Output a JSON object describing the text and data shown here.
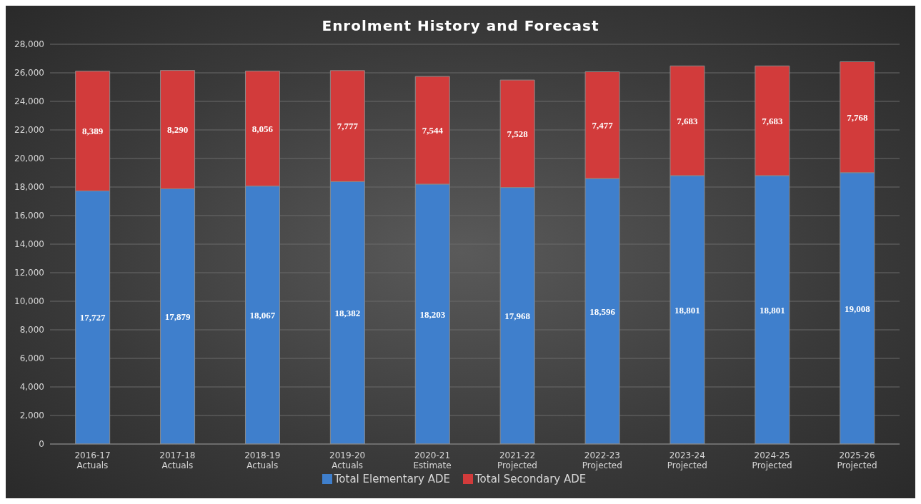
{
  "chart_data": {
    "type": "bar",
    "title": "Enrolment History and Forecast",
    "categories": [
      "2016-17\nActuals",
      "2017-18\nActuals",
      "2018-19\nActuals",
      "2019-20\nActuals",
      "2020-21\nEstimate",
      "2021-22\nProjected",
      "2022-23\nProjected",
      "2023-24\nProjected",
      "2024-25\nProjected",
      "2025-26\nProjected"
    ],
    "series": [
      {
        "name": "Total Elementary ADE",
        "color": "#3f7fcc",
        "values": [
          17727,
          17879,
          18067,
          18382,
          18203,
          17968,
          18596,
          18801,
          18801,
          19008
        ],
        "value_labels": [
          "17,727",
          "17,879",
          "18,067",
          "18,382",
          "18,203",
          "17,968",
          "18,596",
          "18,801",
          "18,801",
          "19,008"
        ]
      },
      {
        "name": "Total Secondary ADE",
        "color": "#d23b3b",
        "values": [
          8389,
          8290,
          8056,
          7777,
          7544,
          7528,
          7477,
          7683,
          7683,
          7768
        ],
        "value_labels": [
          "8,389",
          "8,290",
          "8,056",
          "7,777",
          "7,544",
          "7,528",
          "7,477",
          "7,683",
          "7,683",
          "7,768"
        ]
      }
    ],
    "stacked": true,
    "ylim": [
      0,
      28000
    ],
    "yticks": [
      0,
      {
        "value": 2000,
        "label": "2,000"
      },
      {
        "value": 4000,
        "label": "4,000"
      },
      {
        "value": 6000,
        "label": "6,000"
      },
      {
        "value": 8000,
        "label": "8,000"
      },
      {
        "value": 10000,
        "label": "10,000"
      },
      {
        "value": 12000,
        "label": "12,000"
      },
      {
        "value": 14000,
        "label": "14,000"
      },
      {
        "value": 16000,
        "label": "16,000"
      },
      {
        "value": 18000,
        "label": "18,000"
      },
      {
        "value": 20000,
        "label": "20,000"
      },
      {
        "value": 22000,
        "label": "22,000"
      },
      {
        "value": 24000,
        "label": "24,000"
      },
      {
        "value": 26000,
        "label": "26,000"
      },
      {
        "value": 28000,
        "label": "28,000"
      }
    ],
    "grid": "y",
    "legend": "bottom"
  }
}
